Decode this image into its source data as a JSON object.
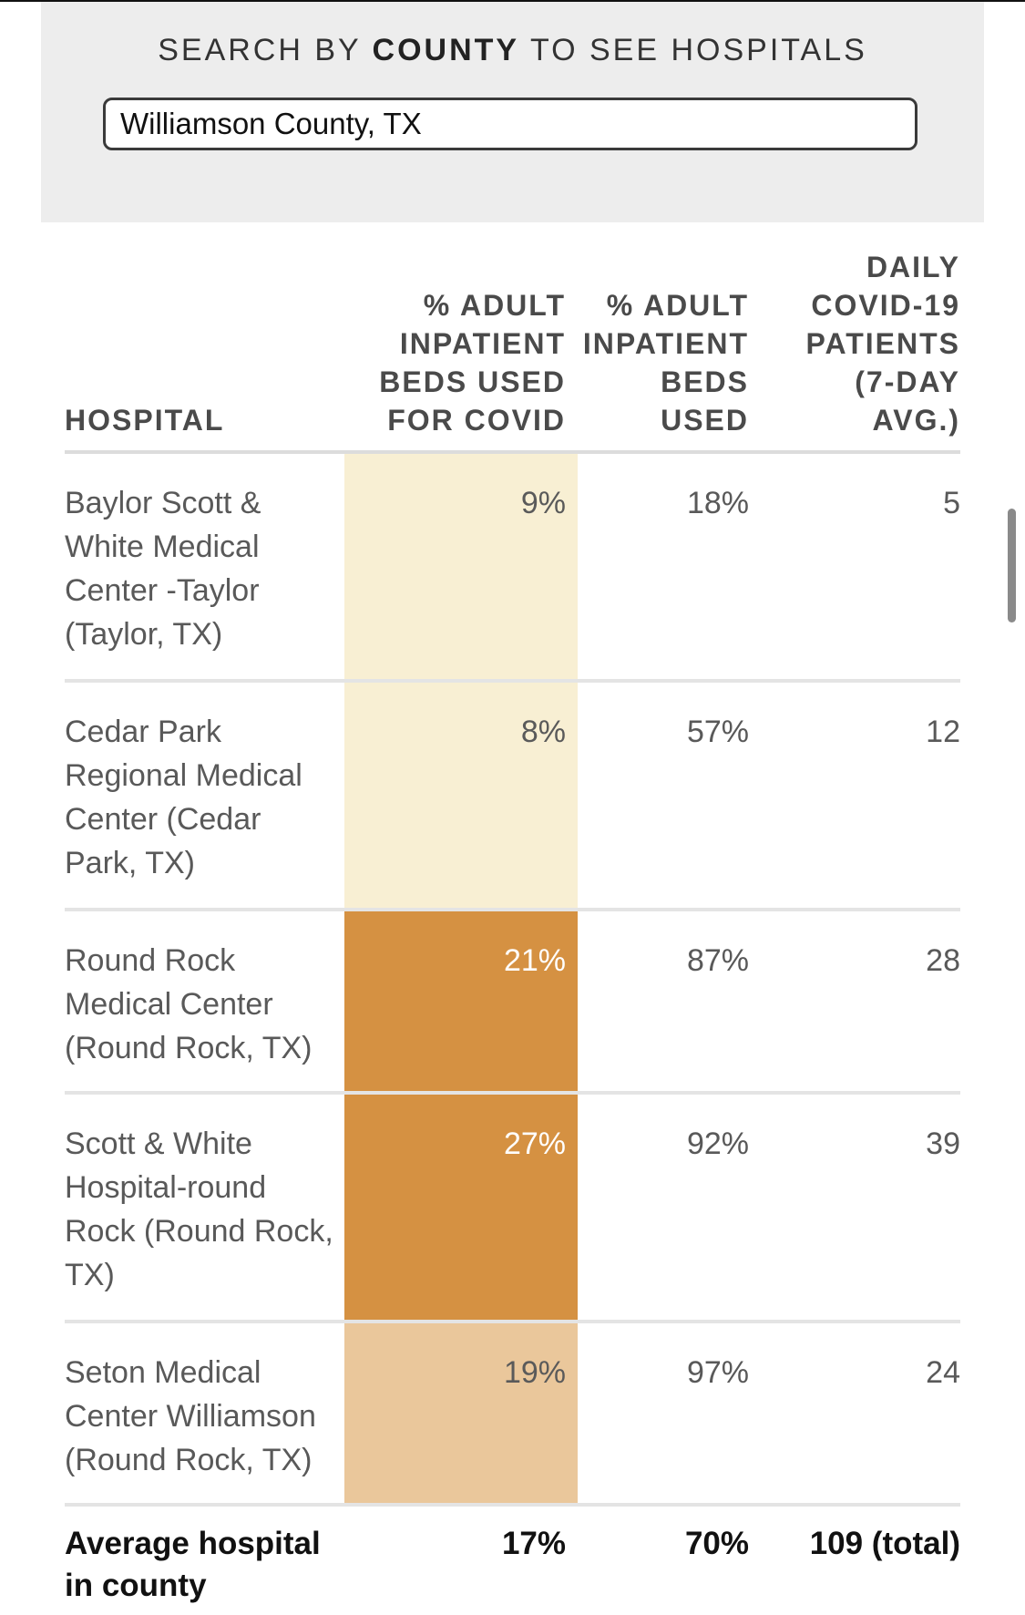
{
  "search": {
    "heading_pre": "SEARCH BY ",
    "heading_bold": "COUNTY",
    "heading_post": " TO SEE HOSPITALS",
    "value": "Williamson County, TX"
  },
  "table": {
    "headers": {
      "hospital": "HOSPITAL",
      "pct_covid": "% ADULT INPATIENT BEDS USED FOR COVID",
      "pct_used": "% ADULT INPATIENT BEDS USED",
      "daily": "DAILY COVID-19 PATIENTS (7-DAY AVG.)"
    },
    "rows": [
      {
        "name": "Baylor Scott & White Medical Center -Taylor (Taylor, TX)",
        "pct_covid": "9%",
        "pct_used": "18%",
        "daily": "5",
        "pct_covid_value": 9,
        "cell_color": "#f8efd3",
        "text_color": "#5a5a5a"
      },
      {
        "name": "Cedar Park Regional Medical Center (Cedar Park, TX)",
        "pct_covid": "8%",
        "pct_used": "57%",
        "daily": "12",
        "pct_covid_value": 8,
        "cell_color": "#f8efd3",
        "text_color": "#5a5a5a"
      },
      {
        "name": "Round Rock Medical Center (Round Rock, TX)",
        "pct_covid": "21%",
        "pct_used": "87%",
        "daily": "28",
        "pct_covid_value": 21,
        "cell_color": "#d59142",
        "text_color": "#ffffff"
      },
      {
        "name": "Scott & White Hospital-round Rock (Round Rock, TX)",
        "pct_covid": "27%",
        "pct_used": "92%",
        "daily": "39",
        "pct_covid_value": 27,
        "cell_color": "#d59142",
        "text_color": "#ffffff"
      },
      {
        "name": "Seton Medical Center Williamson (Round Rock, TX)",
        "pct_covid": "19%",
        "pct_used": "97%",
        "daily": "24",
        "pct_covid_value": 19,
        "cell_color": "#eac79b",
        "text_color": "#5a5a5a"
      }
    ],
    "footer": {
      "label": "Average hospital in county",
      "pct_covid": "17%",
      "pct_used": "70%",
      "daily": "109 (total)"
    }
  }
}
